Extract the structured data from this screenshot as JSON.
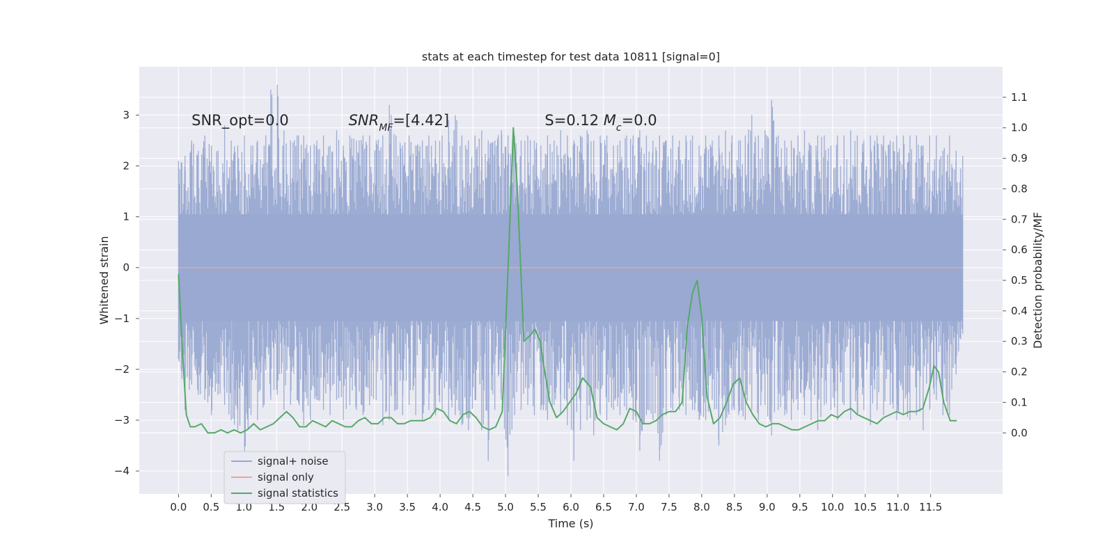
{
  "chart_data": {
    "type": "line",
    "title": "stats at each timestep for test data 10811 [signal=0]",
    "xlabel": "Time (s)",
    "ylabel_left": "Whitened strain",
    "ylabel_right": "Detection probability/MF",
    "xlim": [
      -0.6,
      12.6
    ],
    "ylim_left": [
      -4.45,
      3.95
    ],
    "ylim_right": [
      -0.2,
      1.2
    ],
    "x_ticks": [
      0.0,
      0.5,
      1.0,
      1.5,
      2.0,
      2.5,
      3.0,
      3.5,
      4.0,
      4.5,
      5.0,
      5.5,
      6.0,
      6.5,
      7.0,
      7.5,
      8.0,
      8.5,
      9.0,
      9.5,
      10.0,
      10.5,
      11.0,
      11.5
    ],
    "x_tick_labels": [
      "0.0",
      "0.5",
      "1.0",
      "1.5",
      "2.0",
      "2.5",
      "3.0",
      "3.5",
      "4.0",
      "4.5",
      "5.0",
      "5.5",
      "6.0",
      "6.5",
      "7.0",
      "7.5",
      "8.0",
      "8.5",
      "9.0",
      "9.5",
      "10.0",
      "10.5",
      "11.0",
      "11.5"
    ],
    "y_left_ticks": [
      -4,
      -3,
      -2,
      -1,
      0,
      1,
      2,
      3
    ],
    "y_left_tick_labels": [
      "−4",
      "−3",
      "−2",
      "−1",
      "0",
      "1",
      "2",
      "3"
    ],
    "y_right_ticks": [
      0.0,
      0.1,
      0.2,
      0.3,
      0.4,
      0.5,
      0.6,
      0.7,
      0.8,
      0.9,
      1.0,
      1.1
    ],
    "y_right_tick_labels": [
      "0.0",
      "0.1",
      "0.2",
      "0.3",
      "0.4",
      "0.5",
      "0.6",
      "0.7",
      "0.8",
      "0.9",
      "1.0",
      "1.1"
    ],
    "grid": true,
    "legend_position": "lower-left",
    "annotations": [
      {
        "text": "SNR_opt=0.0",
        "x": 0.2,
        "y": 2.8,
        "italic": false
      },
      {
        "text": "SNR_MF=[4.42]",
        "x": 2.6,
        "y": 2.8,
        "italic": true
      },
      {
        "text": "S=0.12   M_c=0.0",
        "x": 5.6,
        "y": 2.8,
        "italic": true
      }
    ],
    "series": [
      {
        "name": "signal+ noise",
        "color": "#99a9d1",
        "axis": "left",
        "style": "noise band",
        "x_range": [
          0.0,
          11.99
        ],
        "envelope_upper": [
          2.1,
          2.2,
          2.5,
          2.3,
          2.6,
          2.4,
          2.3,
          2.8,
          2.5,
          2.4,
          2.6,
          2.4,
          2.5,
          2.4,
          3.5,
          3.6,
          2.7,
          2.5,
          2.6,
          2.6,
          2.4,
          2.5,
          2.6,
          2.4,
          2.7,
          2.4,
          2.6,
          2.5,
          2.6,
          2.6,
          2.5,
          2.6,
          3.2,
          2.6,
          2.4,
          2.6,
          2.4,
          2.5,
          2.6,
          2.5,
          2.6,
          2.9,
          3.0,
          2.6,
          2.5,
          2.6,
          2.7,
          2.5,
          2.5,
          2.7,
          2.6,
          2.6,
          2.5,
          2.6,
          2.5,
          2.4,
          2.6,
          2.5,
          2.7,
          2.6,
          2.5,
          2.6,
          2.7,
          2.5,
          2.6,
          2.6,
          2.4,
          2.5,
          2.6,
          2.6,
          2.7,
          2.6,
          2.5,
          2.6,
          2.5,
          2.6,
          2.5,
          2.6,
          2.6,
          2.4,
          2.6,
          2.5,
          2.6,
          2.7,
          2.6,
          2.5,
          2.6,
          3.0,
          2.6,
          2.7,
          3.3,
          2.6,
          2.5,
          2.5,
          2.6,
          2.7,
          2.4,
          2.6,
          2.6,
          2.4,
          2.6,
          2.6,
          2.7,
          2.6,
          2.5,
          2.6,
          2.6,
          2.6,
          2.5,
          2.6,
          2.6,
          2.6,
          2.6,
          2.4,
          2.6,
          2.6,
          2.3,
          2.6,
          2.3,
          2.2
        ],
        "envelope_lower": [
          -1.8,
          -2.8,
          -2.3,
          -2.5,
          -2.6,
          -2.9,
          -2.5,
          -2.7,
          -3.0,
          -3.2,
          -3.7,
          -2.9,
          -3.0,
          -2.7,
          -2.6,
          -2.5,
          -2.8,
          -2.7,
          -2.6,
          -3.1,
          -3.0,
          -2.6,
          -2.8,
          -2.9,
          -2.6,
          -3.0,
          -2.7,
          -2.8,
          -2.9,
          -2.7,
          -2.6,
          -3.1,
          -3.0,
          -2.8,
          -2.9,
          -2.7,
          -2.9,
          -3.0,
          -2.8,
          -2.9,
          -2.8,
          -3.0,
          -2.9,
          -3.1,
          -3.2,
          -2.6,
          -3.2,
          -3.8,
          -2.8,
          -2.6,
          -4.1,
          -2.9,
          -2.8,
          -2.7,
          -2.9,
          -2.8,
          -3.0,
          -2.7,
          -2.9,
          -3.1,
          -3.8,
          -3.2,
          -3.0,
          -3.3,
          -2.9,
          -3.0,
          -2.8,
          -2.9,
          -2.8,
          -3.0,
          -3.6,
          -2.9,
          -3.0,
          -3.8,
          -2.9,
          -2.8,
          -2.8,
          -2.9,
          -2.8,
          -3.0,
          -3.0,
          -2.6,
          -3.5,
          -3.1,
          -2.8,
          -2.9,
          -3.0,
          -2.8,
          -3.0,
          -2.7,
          -3.3,
          -2.8,
          -2.9,
          -3.0,
          -2.8,
          -2.9,
          -3.0,
          -3.2,
          -2.7,
          -2.8,
          -3.0,
          -2.7,
          -3.0,
          -2.9,
          -2.8,
          -3.1,
          -2.8,
          -2.9,
          -2.7,
          -3.0,
          -2.9,
          -3.0,
          -2.9,
          -3.2,
          -2.8,
          -2.6,
          -2.9,
          -2.9,
          -2.1,
          -1.3
        ]
      },
      {
        "name": "signal only",
        "color": "#e8a98f",
        "axis": "left",
        "x": [
          0.0,
          11.99
        ],
        "values": [
          0.0,
          0.0
        ]
      },
      {
        "name": "signal statistics",
        "color": "#55a868",
        "axis": "right",
        "x": [
          0.0,
          0.06,
          0.12,
          0.18,
          0.25,
          0.35,
          0.45,
          0.55,
          0.65,
          0.75,
          0.85,
          0.95,
          1.05,
          1.15,
          1.25,
          1.35,
          1.45,
          1.55,
          1.65,
          1.75,
          1.85,
          1.95,
          2.05,
          2.15,
          2.25,
          2.35,
          2.45,
          2.55,
          2.65,
          2.75,
          2.85,
          2.95,
          3.05,
          3.15,
          3.25,
          3.35,
          3.45,
          3.55,
          3.65,
          3.75,
          3.85,
          3.95,
          4.05,
          4.15,
          4.25,
          4.35,
          4.45,
          4.55,
          4.65,
          4.75,
          4.85,
          4.95,
          5.05,
          5.12,
          5.18,
          5.28,
          5.38,
          5.45,
          5.53,
          5.6,
          5.68,
          5.78,
          5.88,
          5.98,
          6.08,
          6.18,
          6.3,
          6.4,
          6.5,
          6.6,
          6.7,
          6.8,
          6.9,
          7.0,
          7.1,
          7.2,
          7.3,
          7.4,
          7.5,
          7.6,
          7.7,
          7.78,
          7.86,
          7.93,
          8.0,
          8.08,
          8.18,
          8.28,
          8.38,
          8.48,
          8.58,
          8.68,
          8.78,
          8.88,
          8.98,
          9.08,
          9.18,
          9.28,
          9.38,
          9.48,
          9.58,
          9.68,
          9.78,
          9.88,
          9.98,
          10.08,
          10.18,
          10.28,
          10.38,
          10.48,
          10.58,
          10.68,
          10.78,
          10.88,
          10.98,
          11.08,
          11.18,
          11.28,
          11.38,
          11.48,
          11.55,
          11.62,
          11.7,
          11.8,
          11.9
        ],
        "values": [
          0.52,
          0.27,
          0.06,
          0.02,
          0.02,
          0.03,
          0.0,
          0.0,
          0.01,
          0.0,
          0.01,
          0.0,
          0.01,
          0.03,
          0.01,
          0.02,
          0.03,
          0.05,
          0.07,
          0.05,
          0.02,
          0.02,
          0.04,
          0.03,
          0.02,
          0.04,
          0.03,
          0.02,
          0.02,
          0.04,
          0.05,
          0.03,
          0.03,
          0.05,
          0.05,
          0.03,
          0.03,
          0.04,
          0.04,
          0.04,
          0.05,
          0.08,
          0.07,
          0.04,
          0.03,
          0.06,
          0.07,
          0.05,
          0.02,
          0.01,
          0.02,
          0.07,
          0.6,
          1.0,
          0.8,
          0.3,
          0.32,
          0.34,
          0.3,
          0.2,
          0.1,
          0.05,
          0.07,
          0.1,
          0.13,
          0.18,
          0.15,
          0.05,
          0.03,
          0.02,
          0.01,
          0.03,
          0.08,
          0.07,
          0.03,
          0.03,
          0.04,
          0.06,
          0.07,
          0.07,
          0.1,
          0.35,
          0.46,
          0.5,
          0.38,
          0.12,
          0.03,
          0.05,
          0.1,
          0.16,
          0.18,
          0.1,
          0.06,
          0.03,
          0.02,
          0.03,
          0.03,
          0.02,
          0.01,
          0.01,
          0.02,
          0.03,
          0.04,
          0.04,
          0.06,
          0.05,
          0.07,
          0.08,
          0.06,
          0.05,
          0.04,
          0.03,
          0.05,
          0.06,
          0.07,
          0.06,
          0.07,
          0.07,
          0.08,
          0.15,
          0.22,
          0.2,
          0.1,
          0.04,
          0.04
        ]
      }
    ]
  }
}
